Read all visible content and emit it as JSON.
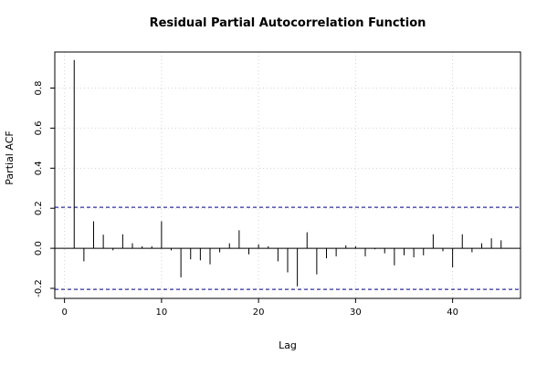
{
  "chart_data": {
    "type": "bar",
    "title": "Residual Partial Autocorrelation Function",
    "xlabel": "Lag",
    "ylabel": "Partial ACF",
    "xlim": [
      -1,
      47
    ],
    "ylim": [
      -0.25,
      0.98
    ],
    "x_ticks": [
      0,
      10,
      20,
      30,
      40
    ],
    "y_ticks": [
      -0.2,
      0.0,
      0.2,
      0.4,
      0.6,
      0.8
    ],
    "y_tick_labels": [
      "-0.2",
      "0.0",
      "0.2",
      "0.4",
      "0.6",
      "0.8"
    ],
    "grid": true,
    "confidence_bounds": [
      0.205,
      -0.205
    ],
    "confidence_color": "#00008b",
    "grid_color": "#d3d3d3",
    "lags": [
      1,
      2,
      3,
      4,
      5,
      6,
      7,
      8,
      9,
      10,
      11,
      12,
      13,
      14,
      15,
      16,
      17,
      18,
      19,
      20,
      21,
      22,
      23,
      24,
      25,
      26,
      27,
      28,
      29,
      30,
      31,
      32,
      33,
      34,
      35,
      36,
      37,
      38,
      39,
      40,
      41,
      42,
      43,
      44,
      45
    ],
    "values": [
      0.94,
      -0.065,
      0.135,
      0.068,
      -0.01,
      0.07,
      0.025,
      0.01,
      0.01,
      0.135,
      -0.01,
      -0.145,
      -0.055,
      -0.06,
      -0.08,
      -0.02,
      0.025,
      0.09,
      -0.03,
      0.02,
      0.01,
      -0.065,
      -0.12,
      -0.19,
      0.08,
      -0.13,
      -0.05,
      -0.04,
      0.015,
      0.01,
      -0.04,
      -0.005,
      -0.025,
      -0.085,
      -0.035,
      -0.045,
      -0.035,
      0.07,
      -0.015,
      -0.095,
      0.07,
      -0.02,
      0.025,
      0.05,
      0.04
    ]
  }
}
